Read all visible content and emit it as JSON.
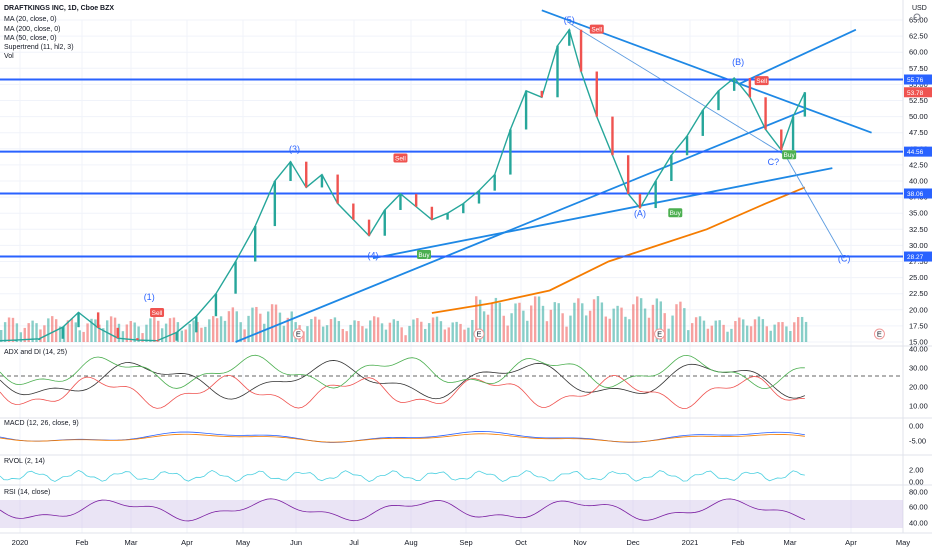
{
  "header": {
    "symbol": "DRAFTKINGS INC, 1D, Cboe BZX",
    "currency": "USD",
    "indicators": [
      "MA (20, close, 0)",
      "MA (200, close, 0)",
      "MA (50, close, 0)",
      "Supertrend (11, hl2, 3)",
      "Vol"
    ]
  },
  "panes": {
    "adx": {
      "label": "ADX and DI (14, 25)",
      "ticks": [
        "40.00",
        "30.00",
        "20.00",
        "10.00"
      ]
    },
    "macd": {
      "label": "MACD (12, 26, close, 9)",
      "ticks": [
        "0.00",
        "-5.00"
      ]
    },
    "rvol": {
      "label": "RVOL (2, 14)",
      "ticks": [
        "2.00",
        "0.00"
      ]
    },
    "rsi": {
      "label": "RSI (14, close)",
      "ticks": [
        "80.00",
        "60.00",
        "40.00"
      ]
    }
  },
  "colors": {
    "accent": "#2962ff",
    "up": "#26a69a",
    "down": "#ef5350",
    "ma200": "#f57c00",
    "trend": "#1e88e5"
  },
  "chart_data": {
    "type": "line",
    "title": "DRAFTKINGS INC, 1D, Cboe BZX",
    "y_ticks": [
      65,
      62.5,
      60,
      57.5,
      55,
      52.5,
      50,
      47.5,
      45,
      42.5,
      40,
      37.5,
      35,
      32.5,
      30,
      27.5,
      25,
      22.5,
      20,
      17.5,
      15
    ],
    "ylim": [
      15,
      65
    ],
    "x_ticks": [
      "2020",
      "Feb",
      "Mar",
      "Apr",
      "May",
      "Jun",
      "Jul",
      "Aug",
      "Sep",
      "Oct",
      "Nov",
      "Dec",
      "2021",
      "Feb",
      "Mar",
      "Apr",
      "May"
    ],
    "price_labels": [
      {
        "value": 55.76,
        "text": "55.76",
        "color": "#2962ff"
      },
      {
        "value": 53.78,
        "text": "53.78",
        "color": "#ef5350"
      },
      {
        "value": 44.56,
        "text": "44.56",
        "color": "#2962ff"
      },
      {
        "value": 38.06,
        "text": "38.06",
        "color": "#2962ff"
      },
      {
        "value": 28.27,
        "text": "28.27",
        "color": "#2962ff"
      }
    ],
    "horizontal_levels": [
      55.76,
      44.56,
      38.06,
      28.27
    ],
    "close_series": [
      {
        "x": 0,
        "y": 15.2
      },
      {
        "x": 4,
        "y": 15.3
      },
      {
        "x": 10,
        "y": 15.5
      },
      {
        "x": 16,
        "y": 17.3
      },
      {
        "x": 20,
        "y": 19.6
      },
      {
        "x": 25,
        "y": 17.2
      },
      {
        "x": 30,
        "y": 15.6
      },
      {
        "x": 35,
        "y": 15.3
      },
      {
        "x": 40,
        "y": 15.2
      },
      {
        "x": 45,
        "y": 16.5
      },
      {
        "x": 50,
        "y": 19.0
      },
      {
        "x": 55,
        "y": 22.5
      },
      {
        "x": 60,
        "y": 27.5
      },
      {
        "x": 65,
        "y": 33.0
      },
      {
        "x": 70,
        "y": 40.0
      },
      {
        "x": 74,
        "y": 43.0
      },
      {
        "x": 78,
        "y": 39.0
      },
      {
        "x": 82,
        "y": 41.0
      },
      {
        "x": 86,
        "y": 36.5
      },
      {
        "x": 90,
        "y": 34.0
      },
      {
        "x": 94,
        "y": 31.5
      },
      {
        "x": 98,
        "y": 35.5
      },
      {
        "x": 102,
        "y": 38.0
      },
      {
        "x": 106,
        "y": 36.0
      },
      {
        "x": 110,
        "y": 34.0
      },
      {
        "x": 114,
        "y": 35.0
      },
      {
        "x": 118,
        "y": 36.5
      },
      {
        "x": 122,
        "y": 38.5
      },
      {
        "x": 126,
        "y": 41.0
      },
      {
        "x": 130,
        "y": 48.0
      },
      {
        "x": 134,
        "y": 54.0
      },
      {
        "x": 138,
        "y": 53.0
      },
      {
        "x": 142,
        "y": 61.0
      },
      {
        "x": 145,
        "y": 63.5
      },
      {
        "x": 148,
        "y": 57.0
      },
      {
        "x": 152,
        "y": 50.0
      },
      {
        "x": 156,
        "y": 44.0
      },
      {
        "x": 160,
        "y": 38.0
      },
      {
        "x": 163,
        "y": 35.8
      },
      {
        "x": 167,
        "y": 40.0
      },
      {
        "x": 171,
        "y": 44.0
      },
      {
        "x": 175,
        "y": 47.0
      },
      {
        "x": 179,
        "y": 51.0
      },
      {
        "x": 183,
        "y": 54.0
      },
      {
        "x": 187,
        "y": 56.0
      },
      {
        "x": 191,
        "y": 53.0
      },
      {
        "x": 195,
        "y": 48.0
      },
      {
        "x": 199,
        "y": 44.8
      },
      {
        "x": 202,
        "y": 50.0
      },
      {
        "x": 205,
        "y": 53.78
      }
    ],
    "ma200_series": [
      {
        "x": 110,
        "y": 19.5
      },
      {
        "x": 125,
        "y": 21.0
      },
      {
        "x": 140,
        "y": 23.0
      },
      {
        "x": 155,
        "y": 27.5
      },
      {
        "x": 165,
        "y": 29.5
      },
      {
        "x": 180,
        "y": 32.5
      },
      {
        "x": 195,
        "y": 36.5
      },
      {
        "x": 205,
        "y": 39.0
      }
    ],
    "wave_labels": [
      {
        "text": "(1)",
        "x": 38,
        "y": 21.5
      },
      {
        "text": "(3)",
        "x": 75,
        "y": 44.5
      },
      {
        "text": "(4)",
        "x": 95,
        "y": 28.0
      },
      {
        "text": "(5)",
        "x": 145,
        "y": 64.5
      },
      {
        "text": "(A)",
        "x": 163,
        "y": 34.5
      },
      {
        "text": "(B)",
        "x": 188,
        "y": 58.0
      },
      {
        "text": "C?",
        "x": 197,
        "y": 42.5
      },
      {
        "text": "(C)",
        "x": 215,
        "y": 27.5
      }
    ],
    "signals": [
      {
        "text": "Sell",
        "x": 40,
        "y": 19.5,
        "color": "#ef5350"
      },
      {
        "text": "Sell",
        "x": 102,
        "y": 43.5,
        "color": "#ef5350"
      },
      {
        "text": "Sell",
        "x": 152,
        "y": 63.5,
        "color": "#ef5350"
      },
      {
        "text": "Sell",
        "x": 194,
        "y": 55.5,
        "color": "#ef5350"
      },
      {
        "text": "Buy",
        "x": 108,
        "y": 28.5,
        "color": "#4caf50"
      },
      {
        "text": "Buy",
        "x": 172,
        "y": 35.0,
        "color": "#4caf50"
      },
      {
        "text": "Buy",
        "x": 201,
        "y": 44.0,
        "color": "#4caf50"
      }
    ],
    "events": [
      {
        "text": "E",
        "x": 76
      },
      {
        "text": "E",
        "x": 122
      },
      {
        "text": "E",
        "x": 168
      },
      {
        "text": "E",
        "x": 224
      }
    ],
    "grid": true
  }
}
